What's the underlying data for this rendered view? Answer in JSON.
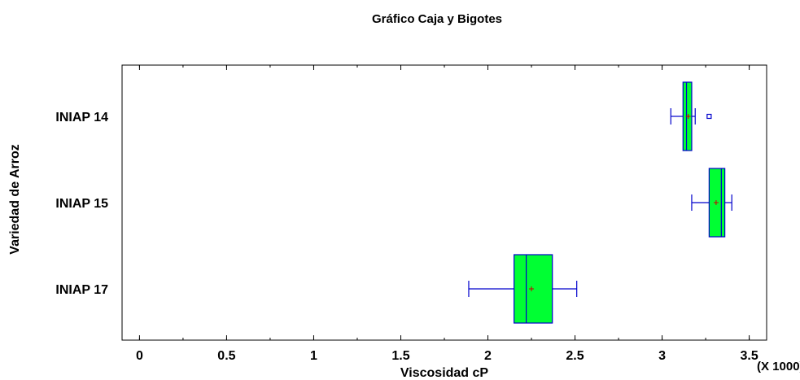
{
  "chart_data": {
    "type": "boxplot",
    "orientation": "horizontal",
    "title": "Gráfico Caja y Bigotes",
    "xlabel": "Viscosidad cP",
    "ylabel": "Variedad de Arroz",
    "x_multiplier_label": "(X 1000)",
    "xlim": [
      -0.1,
      3.6
    ],
    "x_ticks": [
      0,
      0.5,
      1,
      1.5,
      2,
      2.5,
      3,
      3.5
    ],
    "x_tick_labels": [
      "0",
      "0.5",
      "1",
      "1.5",
      "2",
      "2.5",
      "3",
      "3.5"
    ],
    "categories": [
      "INIAP 14",
      "INIAP 15",
      "INIAP 17"
    ],
    "series": [
      {
        "category": "INIAP 14",
        "whisker_low": 3.05,
        "q1": 3.12,
        "median": 3.14,
        "q3": 3.17,
        "whisker_high": 3.19,
        "mean": 3.15,
        "outliers": [
          3.27
        ]
      },
      {
        "category": "INIAP 15",
        "whisker_low": 3.17,
        "q1": 3.27,
        "median": 3.34,
        "q3": 3.36,
        "whisker_high": 3.4,
        "mean": 3.31,
        "outliers": []
      },
      {
        "category": "INIAP 17",
        "whisker_low": 1.89,
        "q1": 2.15,
        "median": 2.22,
        "q3": 2.37,
        "whisker_high": 2.51,
        "mean": 2.25,
        "outliers": []
      }
    ],
    "colors": {
      "box_fill": "#00ff33",
      "box_stroke": "#0000cc",
      "whisker": "#0000cc",
      "mean_marker": "#cc0000",
      "outlier": "#0000cc",
      "frame": "#000000"
    },
    "grid": false,
    "legend": "none"
  }
}
